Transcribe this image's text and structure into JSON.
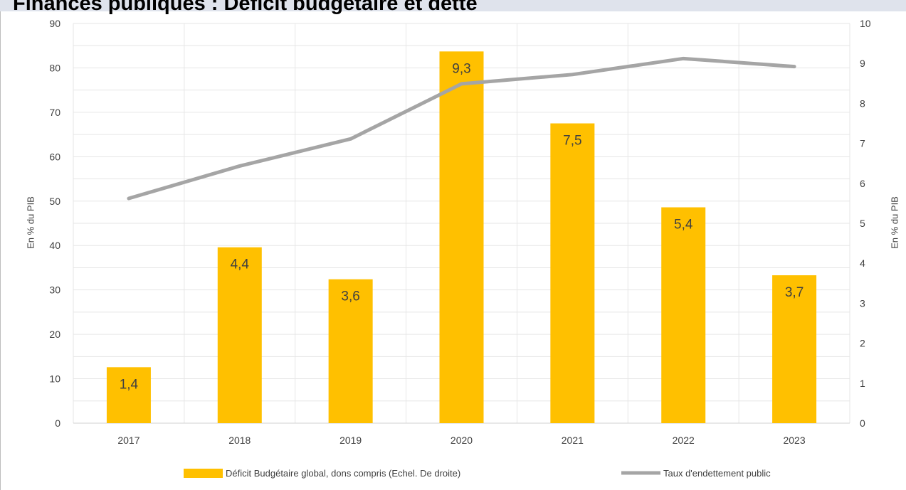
{
  "chart_data": {
    "type": "bar",
    "title": "Finances publiques : Déficit budgétaire et dette",
    "categories": [
      "2017",
      "2018",
      "2019",
      "2020",
      "2021",
      "2022",
      "2023"
    ],
    "series": [
      {
        "name": "Déficit Budgétaire global, dons compris (Echel. De droite)",
        "type": "bar",
        "axis": "right",
        "color": "#FFC000",
        "values": [
          1.4,
          4.4,
          3.6,
          9.3,
          7.5,
          5.4,
          3.7
        ],
        "labels": [
          "1,4",
          "4,4",
          "3,6",
          "9,3",
          "7,5",
          "5,4",
          "3,7"
        ]
      },
      {
        "name": "Taux d'endettement public",
        "type": "line",
        "axis": "left",
        "color": "#A5A5A5",
        "values": [
          50.6,
          57.9,
          64.0,
          76.4,
          78.5,
          82.1,
          80.3
        ]
      }
    ],
    "y_left": {
      "label": "En % du PIB",
      "min": 0,
      "max": 90,
      "step": 10
    },
    "y_right": {
      "label": "En % du PIB",
      "min": 0,
      "max": 10,
      "step": 1
    },
    "grid": true,
    "legend": "bottom"
  }
}
